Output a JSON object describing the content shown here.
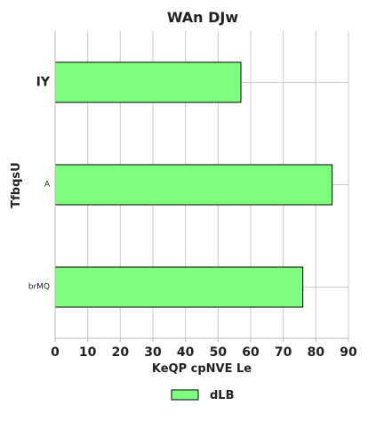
{
  "chart_data": {
    "type": "bar",
    "orientation": "horizontal",
    "title": "WAn DJw",
    "xlabel": "KeQP cpNVE Le",
    "ylabel": "TfbqsU",
    "categories": [
      "IY",
      "A",
      "brMQ"
    ],
    "series": [
      {
        "name": "dLB",
        "values": [
          57,
          85,
          76
        ],
        "color": "#7fff7f"
      }
    ],
    "xlim": [
      0,
      90
    ],
    "xticks": [
      0,
      10,
      20,
      30,
      40,
      50,
      60,
      70,
      80,
      90
    ],
    "grid": true,
    "legend": "bottom-center"
  }
}
